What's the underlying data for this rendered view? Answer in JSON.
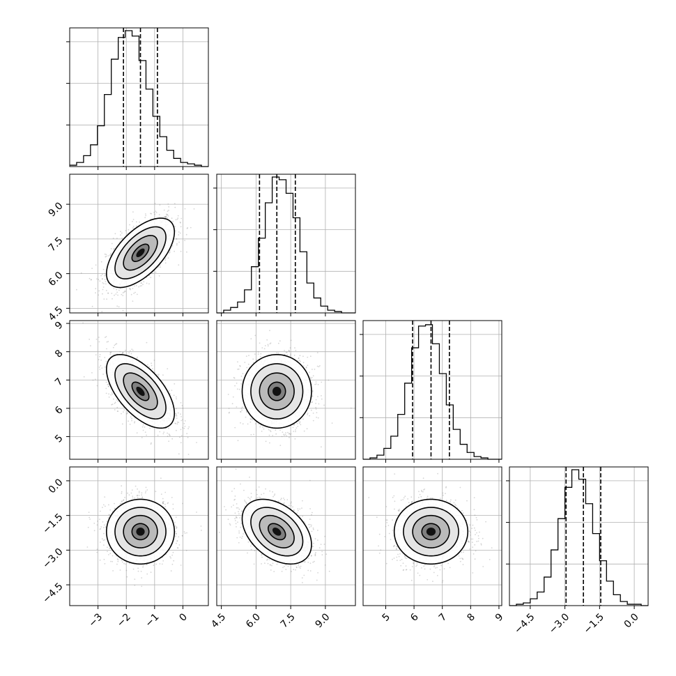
{
  "chart_data": {
    "type": "corner",
    "title": "",
    "parameters": [
      {
        "label": "",
        "mean": -1.5,
        "sd": 0.6,
        "range": [
          -4,
          0.9
        ],
        "ticks": [
          -3,
          -2,
          -1,
          0
        ],
        "tick_labels": [
          "−3",
          "−2",
          "−1",
          "0"
        ],
        "quantiles": [
          -2.1,
          -1.5,
          -0.9
        ]
      },
      {
        "label": "",
        "mean": 6.9,
        "sd": 0.75,
        "range": [
          4.3,
          10.3
        ],
        "ticks": [
          4.5,
          6.0,
          7.5,
          9.0
        ],
        "tick_labels": [
          "4.5",
          "6.0",
          "7.5",
          "9.0"
        ],
        "quantiles": [
          6.15,
          6.9,
          7.7
        ]
      },
      {
        "label": "",
        "mean": 6.6,
        "sd": 0.65,
        "range": [
          4.2,
          9.1
        ],
        "ticks": [
          5,
          6,
          7,
          8,
          9
        ],
        "tick_labels": [
          "5",
          "6",
          "7",
          "8",
          "9"
        ],
        "quantiles": [
          5.95,
          6.6,
          7.25
        ]
      },
      {
        "label": "",
        "mean": -2.2,
        "sd": 0.7,
        "range": [
          -5.4,
          0.6
        ],
        "ticks": [
          -4.5,
          -3.0,
          -1.5,
          0.0
        ],
        "tick_labels": [
          "−4.5",
          "−3.0",
          "−1.5",
          "0.0"
        ],
        "quantiles": [
          -2.95,
          -2.2,
          -1.45
        ]
      }
    ],
    "correlations": [
      [
        1.0,
        0.6,
        -0.6,
        0.0
      ],
      [
        0.6,
        1.0,
        0.0,
        -0.4
      ],
      [
        -0.6,
        0.0,
        1.0,
        0.0
      ],
      [
        0.0,
        -0.4,
        0.0,
        1.0
      ]
    ],
    "histograms": [
      {
        "param": 0,
        "bins": 20,
        "counts": [
          0.01,
          0.03,
          0.08,
          0.16,
          0.3,
          0.53,
          0.79,
          0.95,
          1.0,
          0.96,
          0.78,
          0.57,
          0.37,
          0.22,
          0.12,
          0.06,
          0.03,
          0.02,
          0.01,
          0.0
        ]
      },
      {
        "param": 1,
        "bins": 20,
        "counts": [
          0.0,
          0.02,
          0.04,
          0.08,
          0.17,
          0.34,
          0.55,
          0.81,
          1.0,
          0.98,
          0.88,
          0.7,
          0.45,
          0.22,
          0.11,
          0.05,
          0.02,
          0.01,
          0.0,
          0.0
        ]
      },
      {
        "param": 2,
        "bins": 20,
        "counts": [
          0.0,
          0.01,
          0.03,
          0.08,
          0.17,
          0.33,
          0.56,
          0.82,
          0.98,
          0.99,
          0.85,
          0.63,
          0.4,
          0.22,
          0.11,
          0.05,
          0.02,
          0.01,
          0.0,
          0.0
        ]
      },
      {
        "param": 3,
        "bins": 20,
        "counts": [
          0.0,
          0.01,
          0.02,
          0.05,
          0.1,
          0.21,
          0.41,
          0.64,
          0.87,
          1.0,
          0.93,
          0.75,
          0.53,
          0.33,
          0.18,
          0.08,
          0.03,
          0.01,
          0.01,
          0.0
        ]
      }
    ],
    "contour_levels_sigma": [
      0.5,
      1.0,
      1.5,
      2.0
    ],
    "scatter_points_per_panel": 1400,
    "grid": true,
    "colors": {
      "line": "#000000",
      "grid": "#b0b0b0",
      "points": "#888888"
    }
  }
}
